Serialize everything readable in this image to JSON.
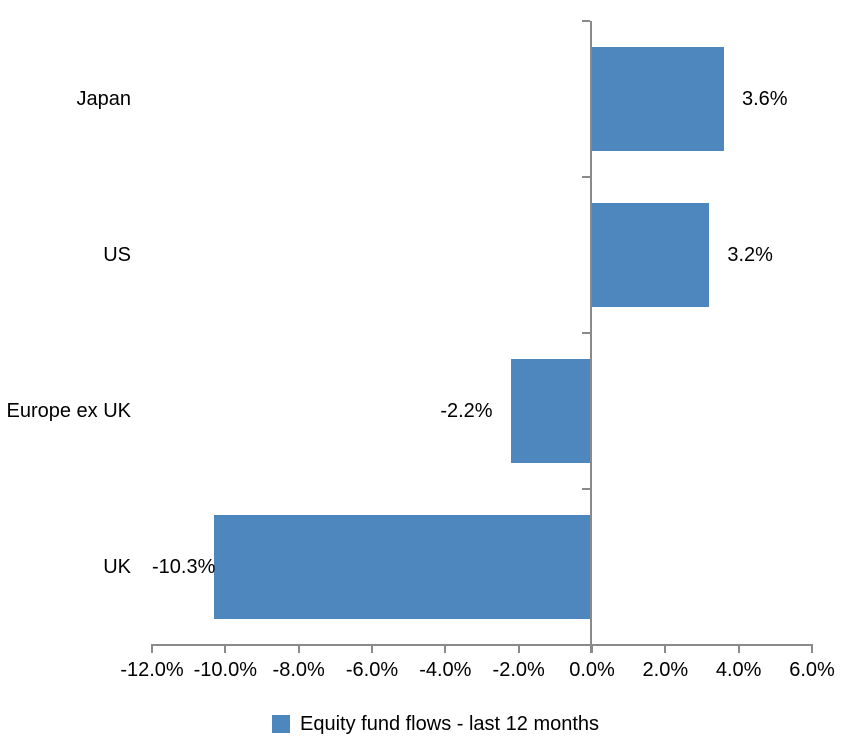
{
  "chart_data": {
    "type": "bar",
    "orientation": "horizontal",
    "categories": [
      "Japan",
      "US",
      "Europe ex UK",
      "UK"
    ],
    "values": [
      3.6,
      3.2,
      -2.2,
      -10.3
    ],
    "data_labels": [
      "3.6%",
      "3.2%",
      "-2.2%",
      "-10.3%"
    ],
    "series": [
      {
        "name": "Equity fund flows - last 12 months",
        "values": [
          3.6,
          3.2,
          -2.2,
          -10.3
        ]
      }
    ],
    "title": "",
    "xlabel": "",
    "ylabel": "",
    "xlim": [
      -12,
      6
    ],
    "x_ticks": [
      -12,
      -10,
      -8,
      -6,
      -4,
      -2,
      0,
      2,
      4,
      6
    ],
    "x_tick_labels": [
      "-12.0%",
      "-10.0%",
      "-8.0%",
      "-6.0%",
      "-4.0%",
      "-2.0%",
      "0.0%",
      "2.0%",
      "4.0%",
      "6.0%"
    ],
    "grid": false,
    "legend_position": "bottom",
    "colors": {
      "bar": "#4E86BE",
      "axis": "#8A8A8A",
      "text": "#000000",
      "background": "#FFFFFF"
    }
  },
  "legend": {
    "label": "Equity fund flows - last 12 months"
  }
}
